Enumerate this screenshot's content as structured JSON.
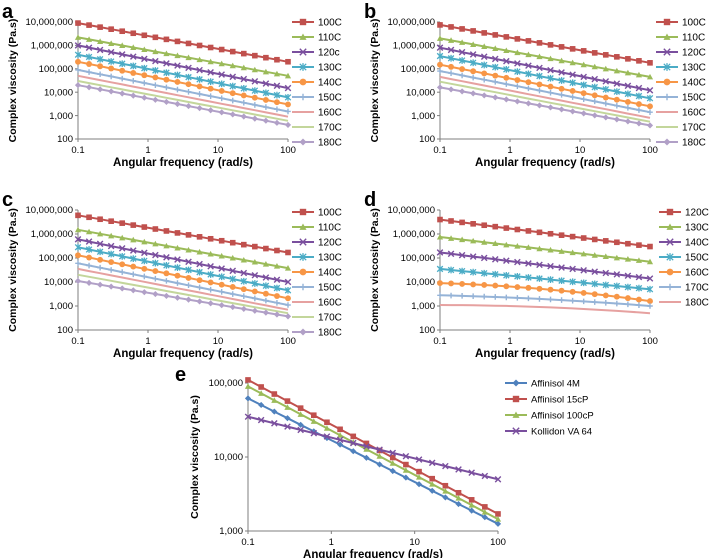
{
  "chart_data": [
    {
      "type": "line",
      "panel": "a",
      "title": "",
      "xlabel": "Angular frequency (rad/s)",
      "ylabel": "Complex viscosity (Pa.s)",
      "xscale": "log",
      "yscale": "log",
      "xlim": [
        0.1,
        100
      ],
      "ylim": [
        100,
        10000000
      ],
      "xticks": [
        "0.1",
        "1",
        "10",
        "100"
      ],
      "yticks": [
        "100",
        "1,000",
        "10,000",
        "100,000",
        "1,000,000",
        "10,000,000"
      ],
      "legend_position": "right",
      "series": [
        {
          "name": "100C",
          "color": "#c0504d",
          "marker": "square",
          "start": 9000000,
          "end": 200000,
          "curve": 0
        },
        {
          "name": "110C",
          "color": "#9bbb59",
          "marker": "triangle",
          "start": 2200000,
          "end": 50000,
          "curve": 0
        },
        {
          "name": "120c",
          "color": "#7a4f9e",
          "marker": "x",
          "start": 1000000,
          "end": 15000,
          "curve": 0
        },
        {
          "name": "130C",
          "color": "#4bacc6",
          "marker": "star",
          "start": 400000,
          "end": 6000,
          "curve": 0
        },
        {
          "name": "140C",
          "color": "#f79646",
          "marker": "circle",
          "start": 200000,
          "end": 3000,
          "curve": 0
        },
        {
          "name": "150C",
          "color": "#95b3d7",
          "marker": "plus",
          "start": 90000,
          "end": 1500,
          "curve": 0
        },
        {
          "name": "160C",
          "color": "#e6a1a0",
          "marker": "none",
          "start": 50000,
          "end": 900,
          "curve": 0
        },
        {
          "name": "170C",
          "color": "#c3d69b",
          "marker": "none",
          "start": 30000,
          "end": 600,
          "curve": 0
        },
        {
          "name": "180C",
          "color": "#b1a0c7",
          "marker": "diamond",
          "start": 20000,
          "end": 400,
          "curve": 0
        }
      ]
    },
    {
      "type": "line",
      "panel": "b",
      "title": "",
      "xlabel": "Angular frequency (rad/s)",
      "ylabel": "Complex viscosity (Pa.s)",
      "xscale": "log",
      "yscale": "log",
      "xlim": [
        0.1,
        100
      ],
      "ylim": [
        100,
        10000000
      ],
      "xticks": [
        "0.1",
        "1",
        "10",
        "100"
      ],
      "yticks": [
        "100",
        "1,000",
        "10,000",
        "100,000",
        "1,000,000",
        "10,000,000"
      ],
      "legend_position": "right",
      "series": [
        {
          "name": "100C",
          "color": "#c0504d",
          "marker": "square",
          "start": 7500000,
          "end": 180000,
          "curve": 0
        },
        {
          "name": "110C",
          "color": "#9bbb59",
          "marker": "triangle",
          "start": 2000000,
          "end": 45000,
          "curve": 0
        },
        {
          "name": "120C",
          "color": "#7a4f9e",
          "marker": "x",
          "start": 800000,
          "end": 12000,
          "curve": 0
        },
        {
          "name": "130C",
          "color": "#4bacc6",
          "marker": "star",
          "start": 350000,
          "end": 5500,
          "curve": 0
        },
        {
          "name": "140C",
          "color": "#f79646",
          "marker": "circle",
          "start": 150000,
          "end": 2500,
          "curve": 0
        },
        {
          "name": "150C",
          "color": "#95b3d7",
          "marker": "plus",
          "start": 80000,
          "end": 1400,
          "curve": 0
        },
        {
          "name": "160C",
          "color": "#e6a1a0",
          "marker": "none",
          "start": 45000,
          "end": 800,
          "curve": 0
        },
        {
          "name": "170C",
          "color": "#c3d69b",
          "marker": "none",
          "start": 28000,
          "end": 550,
          "curve": 0
        },
        {
          "name": "180C",
          "color": "#b1a0c7",
          "marker": "diamond",
          "start": 16000,
          "end": 380,
          "curve": 0
        }
      ]
    },
    {
      "type": "line",
      "panel": "c",
      "title": "",
      "xlabel": "Angular frequency (rad/s)",
      "ylabel": "Complex viscosity (Pa.s)",
      "xscale": "log",
      "yscale": "log",
      "xlim": [
        0.1,
        100
      ],
      "ylim": [
        100,
        10000000
      ],
      "xticks": [
        "0.1",
        "1",
        "10",
        "100"
      ],
      "yticks": [
        "100",
        "1,000",
        "10,000",
        "100,000",
        "1,000,000",
        "10,000,000"
      ],
      "legend_position": "right",
      "series": [
        {
          "name": "100C",
          "color": "#c0504d",
          "marker": "square",
          "start": 6000000,
          "end": 170000,
          "curve": 0
        },
        {
          "name": "110C",
          "color": "#9bbb59",
          "marker": "triangle",
          "start": 1500000,
          "end": 38000,
          "curve": 0
        },
        {
          "name": "120C",
          "color": "#7a4f9e",
          "marker": "x",
          "start": 600000,
          "end": 10000,
          "curve": 0
        },
        {
          "name": "130C",
          "color": "#4bacc6",
          "marker": "star",
          "start": 280000,
          "end": 4500,
          "curve": 0
        },
        {
          "name": "140C",
          "color": "#f79646",
          "marker": "circle",
          "start": 130000,
          "end": 2100,
          "curve": 0
        },
        {
          "name": "150C",
          "color": "#95b3d7",
          "marker": "plus",
          "start": 60000,
          "end": 1100,
          "curve": 0
        },
        {
          "name": "160C",
          "color": "#e6a1a0",
          "marker": "none",
          "start": 35000,
          "end": 700,
          "curve": 0
        },
        {
          "name": "170C",
          "color": "#c3d69b",
          "marker": "none",
          "start": 20000,
          "end": 500,
          "curve": 0
        },
        {
          "name": "180C",
          "color": "#b1a0c7",
          "marker": "diamond",
          "start": 11000,
          "end": 370,
          "curve": 0
        }
      ]
    },
    {
      "type": "line",
      "panel": "d",
      "title": "",
      "xlabel": "Angular frequency (rad/s)",
      "ylabel": "Complex viscosity (Pa.s)",
      "xscale": "log",
      "yscale": "log",
      "xlim": [
        0.1,
        100
      ],
      "ylim": [
        100,
        10000000
      ],
      "xticks": [
        "0.1",
        "1",
        "10",
        "100"
      ],
      "yticks": [
        "100",
        "1,000",
        "10,000",
        "100,000",
        "1,000,000",
        "10,000,000"
      ],
      "legend_position": "right",
      "series": [
        {
          "name": "120C",
          "color": "#c0504d",
          "marker": "square",
          "start": 4000000,
          "end": 300000,
          "curve": 0
        },
        {
          "name": "130C",
          "color": "#9bbb59",
          "marker": "triangle",
          "start": 750000,
          "end": 70000,
          "curve": 0
        },
        {
          "name": "140C",
          "color": "#7a4f9e",
          "marker": "x",
          "start": 170000,
          "end": 14000,
          "curve": 0
        },
        {
          "name": "150C",
          "color": "#4bacc6",
          "marker": "star",
          "start": 35000,
          "end": 5000,
          "curve": 0
        },
        {
          "name": "160C",
          "color": "#f79646",
          "marker": "circle",
          "start": 9000,
          "end": 1600,
          "curve": 0.12
        },
        {
          "name": "170C",
          "color": "#95b3d7",
          "marker": "plus",
          "start": 2800,
          "end": 1000,
          "curve": 0.06
        },
        {
          "name": "180C",
          "color": "#e6a1a0",
          "marker": "none",
          "start": 1100,
          "end": 500,
          "curve": 0.08
        }
      ]
    },
    {
      "type": "line",
      "panel": "e",
      "title": "",
      "xlabel": "Angular frequency (rad/s)",
      "ylabel": "Complex viscosity (Pa.s)",
      "xscale": "log",
      "yscale": "log",
      "xlim": [
        0.1,
        100
      ],
      "ylim": [
        1000,
        100000
      ],
      "xticks": [
        "0.1",
        "1",
        "10",
        "100"
      ],
      "yticks": [
        "1,000",
        "10,000",
        "100,000"
      ],
      "legend_position": "right",
      "series": [
        {
          "name": "Affinisol 4M",
          "color": "#4f81bd",
          "marker": "diamond",
          "start": 62000,
          "end": 1250,
          "curve": 0
        },
        {
          "name": "Affinisol 15cP",
          "color": "#c0504d",
          "marker": "square",
          "start": 110000,
          "end": 1700,
          "curve": 0
        },
        {
          "name": "Affinisol 100cP",
          "color": "#9bbb59",
          "marker": "triangle",
          "start": 90000,
          "end": 1450,
          "curve": 0
        },
        {
          "name": "Kollidon VA 64",
          "color": "#7a4f9e",
          "marker": "x",
          "start": 35000,
          "end": 5000,
          "curve": 0
        }
      ]
    }
  ],
  "panel_labels": [
    "a",
    "b",
    "c",
    "d",
    "e"
  ]
}
